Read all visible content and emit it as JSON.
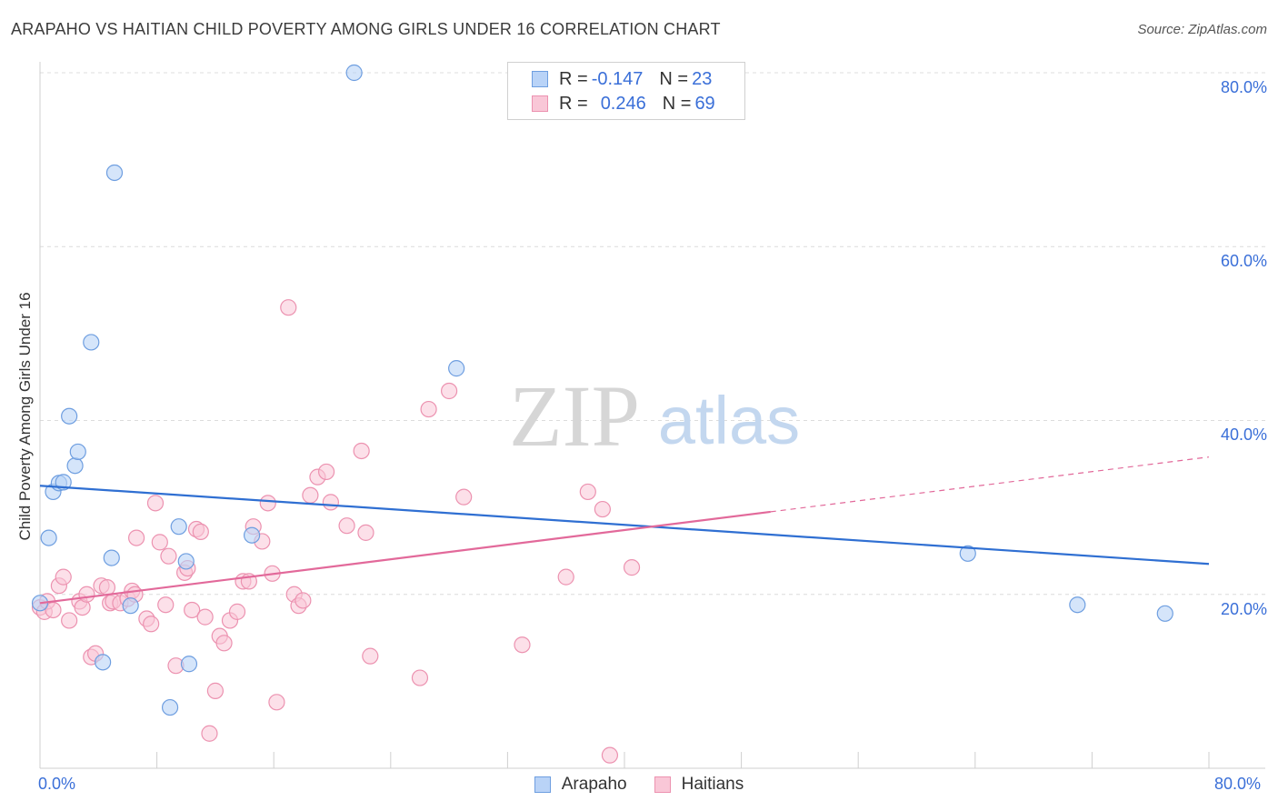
{
  "header": {
    "title": "ARAPAHO VS HAITIAN CHILD POVERTY AMONG GIRLS UNDER 16 CORRELATION CHART",
    "source": "Source: ZipAtlas.com"
  },
  "watermark": {
    "zip": "ZIP",
    "atlas": "atlas"
  },
  "legend": {
    "rows": [
      {
        "r_label": "R = ",
        "r_value": "-0.147",
        "n_label": "N = ",
        "n_value": "23"
      },
      {
        "r_label": "R = ",
        "r_value": "0.246",
        "n_label": "N = ",
        "n_value": "69"
      }
    ]
  },
  "colors": {
    "arapaho_fill": "#b9d3f7",
    "arapaho_stroke": "#6e9ee0",
    "arapaho_line": "#2f6fd2",
    "haitian_fill": "#f9c7d7",
    "haitian_stroke": "#ec92b0",
    "haitian_line": "#e2699a",
    "axis_label": "#3a6fd8"
  },
  "chart_data": {
    "type": "scatter",
    "title": "ARAPAHO VS HAITIAN CHILD POVERTY AMONG GIRLS UNDER 16 CORRELATION CHART",
    "xlabel": "",
    "ylabel": "Child Poverty Among Girls Under 16",
    "xlim": [
      0,
      80
    ],
    "ylim": [
      0,
      80
    ],
    "x_tick_labels": [
      "0.0%",
      "80.0%"
    ],
    "y_tick_labels": [
      "20.0%",
      "40.0%",
      "60.0%",
      "80.0%"
    ],
    "y_ticks": [
      20,
      40,
      60,
      80
    ],
    "grid": "horizontal dashed",
    "legend_position": "top-center",
    "series": [
      {
        "name": "Arapaho",
        "r": -0.147,
        "n": 23,
        "trend": {
          "x": [
            0,
            80
          ],
          "y": [
            32.5,
            23.5
          ]
        },
        "points": [
          [
            0.0,
            19.0
          ],
          [
            0.6,
            26.5
          ],
          [
            0.9,
            31.8
          ],
          [
            1.3,
            32.8
          ],
          [
            1.6,
            32.9
          ],
          [
            2.0,
            40.5
          ],
          [
            2.4,
            34.8
          ],
          [
            2.6,
            36.4
          ],
          [
            3.5,
            49.0
          ],
          [
            4.3,
            12.2
          ],
          [
            4.9,
            24.2
          ],
          [
            5.1,
            68.5
          ],
          [
            6.2,
            18.7
          ],
          [
            8.9,
            7.0
          ],
          [
            9.5,
            27.8
          ],
          [
            10.2,
            12.0
          ],
          [
            10.0,
            23.8
          ],
          [
            14.5,
            26.8
          ],
          [
            21.5,
            80.0
          ],
          [
            28.5,
            46.0
          ],
          [
            63.5,
            24.7
          ],
          [
            71.0,
            18.8
          ],
          [
            77.0,
            17.8
          ]
        ]
      },
      {
        "name": "Haitians",
        "r": 0.246,
        "n": 69,
        "trend": {
          "x": [
            0,
            50
          ],
          "y": [
            19.0,
            29.5
          ]
        },
        "trend_dashed": {
          "x": [
            50,
            80
          ],
          "y": [
            29.5,
            35.8
          ]
        },
        "points": [
          [
            0.0,
            18.5
          ],
          [
            0.3,
            18.0
          ],
          [
            0.5,
            19.2
          ],
          [
            0.9,
            18.2
          ],
          [
            1.3,
            21.0
          ],
          [
            1.6,
            22.0
          ],
          [
            2.0,
            17.0
          ],
          [
            2.7,
            19.2
          ],
          [
            2.9,
            18.5
          ],
          [
            3.2,
            20.0
          ],
          [
            3.5,
            12.8
          ],
          [
            3.8,
            13.2
          ],
          [
            4.2,
            21.0
          ],
          [
            4.6,
            20.8
          ],
          [
            4.8,
            19.0
          ],
          [
            5.0,
            19.2
          ],
          [
            5.5,
            19.0
          ],
          [
            6.0,
            19.5
          ],
          [
            6.3,
            20.4
          ],
          [
            6.5,
            20.0
          ],
          [
            6.6,
            26.5
          ],
          [
            7.3,
            17.2
          ],
          [
            7.6,
            16.6
          ],
          [
            7.9,
            30.5
          ],
          [
            8.2,
            26.0
          ],
          [
            8.6,
            18.8
          ],
          [
            8.8,
            24.4
          ],
          [
            9.3,
            11.8
          ],
          [
            9.9,
            22.5
          ],
          [
            10.1,
            23.0
          ],
          [
            10.4,
            18.2
          ],
          [
            10.7,
            27.5
          ],
          [
            11.0,
            27.2
          ],
          [
            11.3,
            17.4
          ],
          [
            11.6,
            4.0
          ],
          [
            12.0,
            8.9
          ],
          [
            12.3,
            15.2
          ],
          [
            12.6,
            14.4
          ],
          [
            13.0,
            17.0
          ],
          [
            13.5,
            18.0
          ],
          [
            13.9,
            21.5
          ],
          [
            14.3,
            21.5
          ],
          [
            14.6,
            27.8
          ],
          [
            15.2,
            26.1
          ],
          [
            15.6,
            30.5
          ],
          [
            15.9,
            22.4
          ],
          [
            16.2,
            7.6
          ],
          [
            17.0,
            53.0
          ],
          [
            17.4,
            20.0
          ],
          [
            17.7,
            18.7
          ],
          [
            18.0,
            19.3
          ],
          [
            18.5,
            31.4
          ],
          [
            19.0,
            33.5
          ],
          [
            19.6,
            34.1
          ],
          [
            19.9,
            30.6
          ],
          [
            21.0,
            27.9
          ],
          [
            22.0,
            36.5
          ],
          [
            22.3,
            27.1
          ],
          [
            22.6,
            12.9
          ],
          [
            26.0,
            10.4
          ],
          [
            26.6,
            41.3
          ],
          [
            28.0,
            43.4
          ],
          [
            29.0,
            31.2
          ],
          [
            33.0,
            14.2
          ],
          [
            36.0,
            22.0
          ],
          [
            37.5,
            31.8
          ],
          [
            38.5,
            29.8
          ],
          [
            39.0,
            1.5
          ],
          [
            40.5,
            23.1
          ]
        ]
      }
    ]
  },
  "bottom_legend": {
    "arapaho": "Arapaho",
    "haitians": "Haitians"
  }
}
